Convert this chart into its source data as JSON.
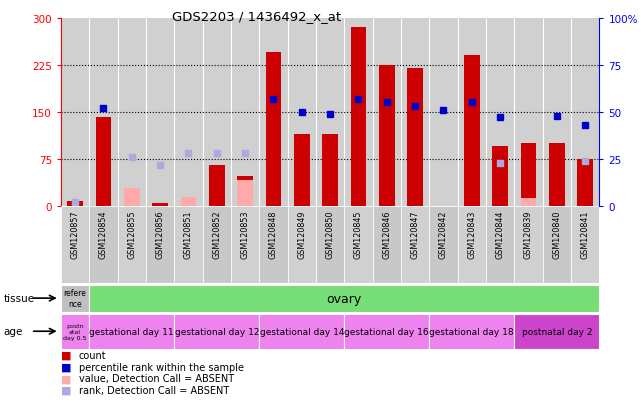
{
  "title": "GDS2203 / 1436492_x_at",
  "samples": [
    "GSM120857",
    "GSM120854",
    "GSM120855",
    "GSM120856",
    "GSM120851",
    "GSM120852",
    "GSM120853",
    "GSM120848",
    "GSM120849",
    "GSM120850",
    "GSM120845",
    "GSM120846",
    "GSM120847",
    "GSM120842",
    "GSM120843",
    "GSM120844",
    "GSM120839",
    "GSM120840",
    "GSM120841"
  ],
  "count_values": [
    8,
    142,
    0,
    5,
    0,
    65,
    48,
    245,
    115,
    115,
    285,
    225,
    220,
    0,
    240,
    95,
    100,
    100,
    75
  ],
  "absent_values": [
    null,
    null,
    28,
    null,
    15,
    null,
    42,
    null,
    null,
    null,
    null,
    null,
    null,
    null,
    null,
    null,
    13,
    null,
    null
  ],
  "percentile_rank": [
    null,
    52,
    null,
    null,
    null,
    null,
    null,
    57,
    50,
    49,
    57,
    55,
    53,
    51,
    55,
    47,
    null,
    48,
    43
  ],
  "absent_rank": [
    2,
    null,
    26,
    22,
    28,
    28,
    28,
    null,
    null,
    null,
    null,
    null,
    null,
    null,
    null,
    23,
    null,
    null,
    24
  ],
  "ylim_left": [
    0,
    300
  ],
  "ylim_right": [
    0,
    100
  ],
  "yticks_left": [
    0,
    75,
    150,
    225,
    300
  ],
  "yticks_right": [
    0,
    25,
    50,
    75,
    100
  ],
  "grid_lines": [
    75,
    150,
    225
  ],
  "tissue_ref_label": "refere\nnce",
  "tissue_label": "ovary",
  "age_ref_label": "postn\natal\nday 0.5",
  "age_groups": [
    {
      "label": "gestational day 11",
      "start": 1,
      "end": 3
    },
    {
      "label": "gestational day 12",
      "start": 4,
      "end": 6
    },
    {
      "label": "gestational day 14",
      "start": 7,
      "end": 9
    },
    {
      "label": "gestational day 16",
      "start": 10,
      "end": 12
    },
    {
      "label": "gestational day 18",
      "start": 13,
      "end": 15
    },
    {
      "label": "postnatal day 2",
      "start": 16,
      "end": 18
    }
  ],
  "tissue_ref_color": "#c0c0c0",
  "tissue_ovary_color": "#77dd77",
  "age_light_color": "#ee82ee",
  "age_dark_color": "#cc44cc",
  "bar_color_red": "#cc0000",
  "bar_color_pink": "#ffaaaa",
  "dot_color_blue": "#0000cc",
  "dot_color_lightblue": "#aaaadd",
  "col_bg_color": "#d0d0d0",
  "plot_bg_color": "#ffffff"
}
